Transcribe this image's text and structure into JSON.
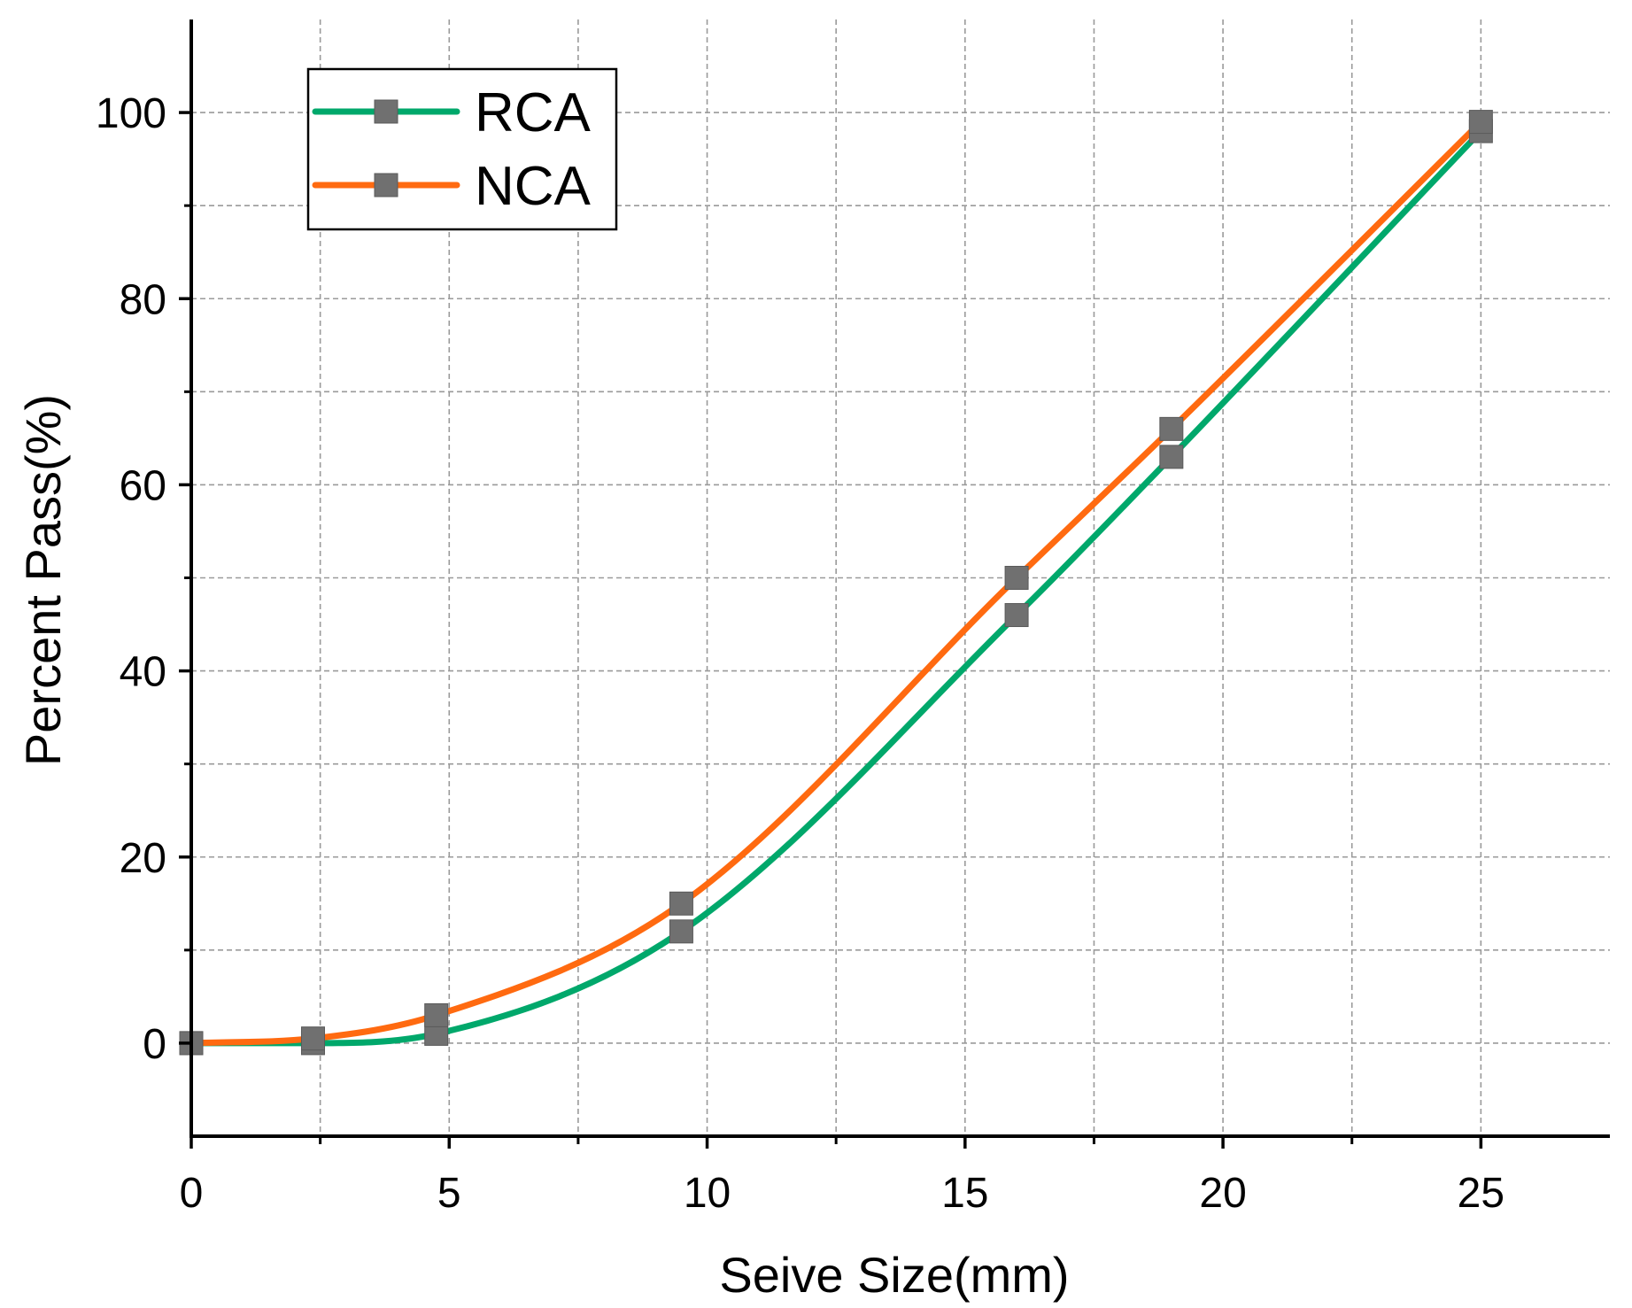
{
  "chart_data": {
    "type": "line",
    "xlabel": "Seive Size(mm)",
    "ylabel": "Percent Pass(%)",
    "xlim": [
      0,
      27.5
    ],
    "ylim": [
      -10,
      110
    ],
    "x_major_ticks": [
      0,
      5,
      10,
      15,
      20,
      25
    ],
    "x_minor_ticks": [
      2.5,
      7.5,
      12.5,
      17.5,
      22.5
    ],
    "y_major_ticks": [
      0,
      20,
      40,
      60,
      80,
      100
    ],
    "y_minor_ticks": [
      10,
      30,
      50,
      70,
      90
    ],
    "grid": true,
    "legend_position": "top-left",
    "marker_color": "#707070",
    "series": [
      {
        "name": "RCA",
        "color": "#00A86B",
        "x": [
          0,
          2.36,
          4.75,
          9.5,
          16,
          19,
          25
        ],
        "values": [
          0,
          0,
          1,
          12,
          46,
          63,
          98
        ]
      },
      {
        "name": "NCA",
        "color": "#FF6A10",
        "x": [
          0,
          2.36,
          4.75,
          9.5,
          16,
          19,
          25
        ],
        "values": [
          0,
          0.5,
          3,
          15,
          50,
          66,
          99
        ]
      }
    ]
  }
}
